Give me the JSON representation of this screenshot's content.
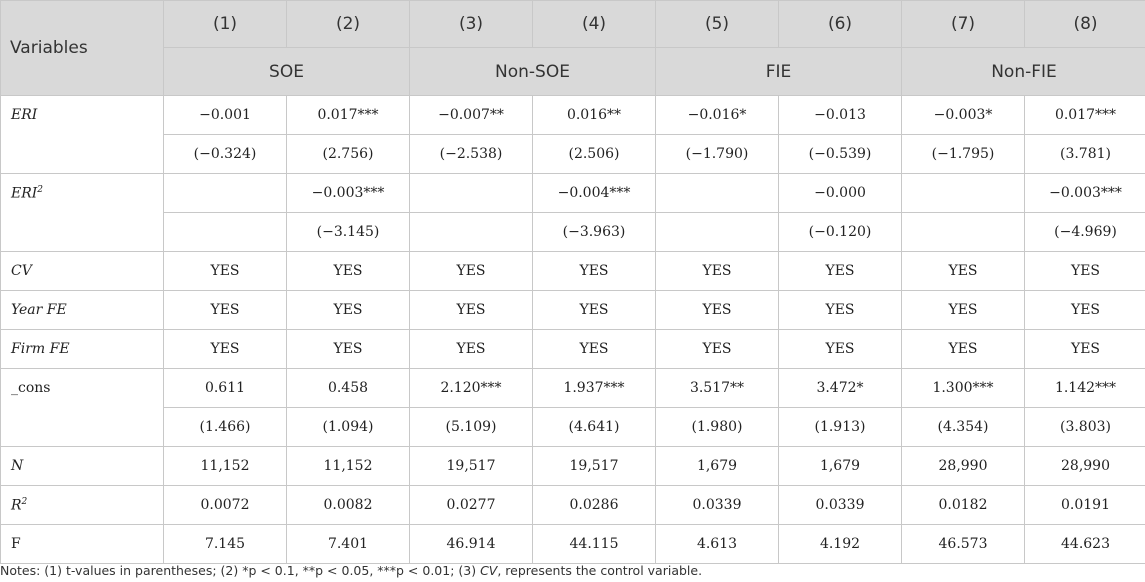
{
  "header": {
    "variables_label": "Variables",
    "columns": [
      "(1)",
      "(2)",
      "(3)",
      "(4)",
      "(5)",
      "(6)",
      "(7)",
      "(8)"
    ],
    "groups": [
      "SOE",
      "Non-SOE",
      "FIE",
      "Non-FIE"
    ]
  },
  "rows": {
    "eri": {
      "label": "ERI",
      "coef": [
        "−0.001",
        "0.017***",
        "−0.007**",
        "0.016**",
        "−0.016*",
        "−0.013",
        "−0.003*",
        "0.017***"
      ],
      "t": [
        "(−0.324)",
        "(2.756)",
        "(−2.538)",
        "(2.506)",
        "(−1.790)",
        "(−0.539)",
        "(−1.795)",
        "(3.781)"
      ]
    },
    "eri2": {
      "label": "ERI",
      "sup": "2",
      "coef": [
        "",
        "−0.003***",
        "",
        "−0.004***",
        "",
        "−0.000",
        "",
        "−0.003***"
      ],
      "t": [
        "",
        "(−3.145)",
        "",
        "(−3.963)",
        "",
        "(−0.120)",
        "",
        "(−4.969)"
      ]
    },
    "cv": {
      "label": "CV",
      "values": [
        "YES",
        "YES",
        "YES",
        "YES",
        "YES",
        "YES",
        "YES",
        "YES"
      ]
    },
    "year_fe": {
      "label": "Year FE",
      "values": [
        "YES",
        "YES",
        "YES",
        "YES",
        "YES",
        "YES",
        "YES",
        "YES"
      ]
    },
    "firm_fe": {
      "label": "Firm FE",
      "values": [
        "YES",
        "YES",
        "YES",
        "YES",
        "YES",
        "YES",
        "YES",
        "YES"
      ]
    },
    "cons": {
      "label": "_cons",
      "coef": [
        "0.611",
        "0.458",
        "2.120***",
        "1.937***",
        "3.517**",
        "3.472*",
        "1.300***",
        "1.142***"
      ],
      "t": [
        "(1.466)",
        "(1.094)",
        "(5.109)",
        "(4.641)",
        "(1.980)",
        "(1.913)",
        "(4.354)",
        "(3.803)"
      ]
    },
    "n": {
      "label": "N",
      "values": [
        "11,152",
        "11,152",
        "19,517",
        "19,517",
        "1,679",
        "1,679",
        "28,990",
        "28,990"
      ]
    },
    "r2": {
      "label": "R",
      "sup": "2",
      "values": [
        "0.0072",
        "0.0082",
        "0.0277",
        "0.0286",
        "0.0339",
        "0.0339",
        "0.0182",
        "0.0191"
      ]
    },
    "f": {
      "label": "F",
      "values": [
        "7.145",
        "7.401",
        "46.914",
        "44.115",
        "4.613",
        "4.192",
        "46.573",
        "44.623"
      ]
    }
  },
  "notes": {
    "before": "Notes: (1) t-values in parentheses; (2) *p < 0.1, **p < 0.05, ***p < 0.01; (3) ",
    "cv": "CV",
    "after": ", represents the control variable."
  }
}
